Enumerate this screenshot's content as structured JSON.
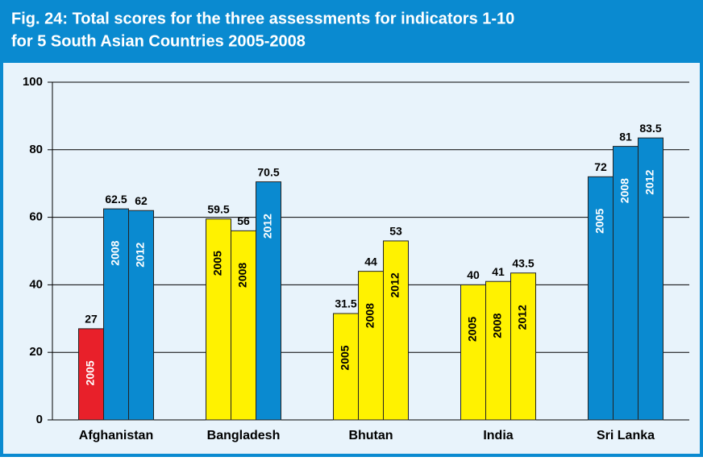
{
  "chart_data": {
    "type": "bar",
    "title": [
      "Fig. 24: Total scores for the three assessments for indicators 1-10",
      "for 5 South Asian Countries 2005-2008"
    ],
    "categories": [
      "Afghanistan",
      "Bangladesh",
      "Bhutan",
      "India",
      "Sri Lanka"
    ],
    "series": [
      {
        "name": "2005",
        "values": [
          27,
          59.5,
          31.5,
          40,
          72
        ],
        "colors": [
          "#e8202a",
          "#fff200",
          "#fff200",
          "#fff200",
          "#0a8ad0"
        ]
      },
      {
        "name": "2008",
        "values": [
          62.5,
          56,
          44,
          41,
          81
        ],
        "colors": [
          "#0a8ad0",
          "#fff200",
          "#fff200",
          "#fff200",
          "#0a8ad0"
        ]
      },
      {
        "name": "2012",
        "values": [
          62,
          70.5,
          53,
          43.5,
          83.5
        ],
        "colors": [
          "#0a8ad0",
          "#0a8ad0",
          "#fff200",
          "#fff200",
          "#0a8ad0"
        ]
      }
    ],
    "ylim": [
      0,
      100
    ],
    "yticks": [
      0,
      20,
      40,
      60,
      80,
      100
    ],
    "grid": true
  }
}
